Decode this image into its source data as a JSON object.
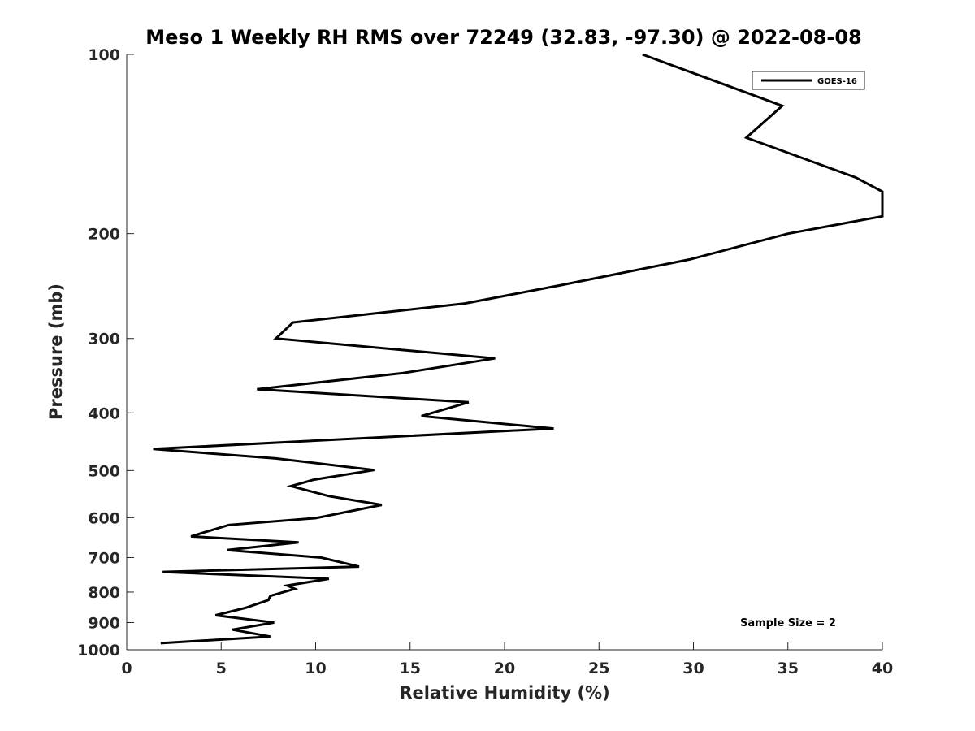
{
  "chart_data": {
    "type": "line",
    "title": "Meso 1 Weekly RH RMS over 72249 (32.83, -97.30) @ 2022-08-08",
    "xlabel": "Relative Humidity (%)",
    "ylabel": "Pressure (mb)",
    "xlim": [
      0,
      40
    ],
    "ylim": [
      100,
      1000
    ],
    "yscale": "log",
    "yreverse": true,
    "grid": false,
    "xticks": [
      0,
      5,
      10,
      15,
      20,
      25,
      30,
      35,
      40
    ],
    "yticks": [
      100,
      200,
      300,
      400,
      500,
      600,
      700,
      800,
      900,
      1000
    ],
    "legend": {
      "position": "top-right",
      "entries": [
        "GOES-16"
      ]
    },
    "annotation": "Sample Size = 2",
    "series": [
      {
        "name": "GOES-16",
        "color": "#000000",
        "points": [
          [
            1.8,
            975
          ],
          [
            7.6,
            950
          ],
          [
            5.6,
            925
          ],
          [
            7.8,
            900
          ],
          [
            4.7,
            875
          ],
          [
            6.3,
            850
          ],
          [
            7.5,
            825
          ],
          [
            7.6,
            812
          ],
          [
            8.9,
            790
          ],
          [
            8.5,
            780
          ],
          [
            10.7,
            760
          ],
          [
            1.9,
            740
          ],
          [
            12.3,
            725
          ],
          [
            10.3,
            700
          ],
          [
            5.3,
            680
          ],
          [
            9.1,
            660
          ],
          [
            3.4,
            645
          ],
          [
            5.4,
            617
          ],
          [
            10.0,
            601
          ],
          [
            13.5,
            571
          ],
          [
            10.7,
            552
          ],
          [
            8.7,
            531
          ],
          [
            9.9,
            518
          ],
          [
            13.1,
            499
          ],
          [
            7.9,
            477
          ],
          [
            1.4,
            460
          ],
          [
            9.6,
            446
          ],
          [
            22.6,
            425
          ],
          [
            15.6,
            405
          ],
          [
            18.1,
            384
          ],
          [
            6.9,
            365
          ],
          [
            14.6,
            343
          ],
          [
            19.5,
            324
          ],
          [
            7.9,
            300
          ],
          [
            8.8,
            282
          ],
          [
            17.9,
            262
          ],
          [
            23.0,
            244
          ],
          [
            29.8,
            221
          ],
          [
            35.0,
            200
          ],
          [
            40.0,
            187
          ],
          [
            40.0,
            170
          ],
          [
            38.6,
            161
          ],
          [
            32.8,
            138
          ],
          [
            34.7,
            122
          ],
          [
            27.3,
            100
          ]
        ]
      }
    ]
  }
}
